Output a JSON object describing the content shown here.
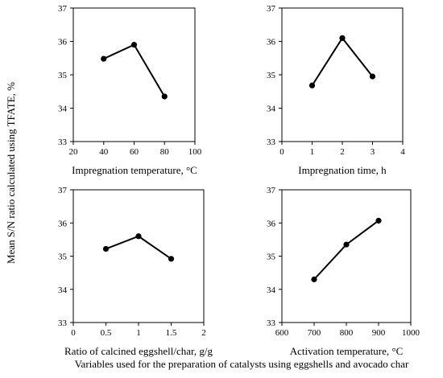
{
  "figure": {
    "shared_ylabel": "Mean S/N ratio calculated using TFATE, %",
    "footer_label": "Variables used for the preparation of catalysts using eggshells and avocado char"
  },
  "chart_data": [
    {
      "type": "line",
      "xlabel": "Impregnation temperature, °C",
      "ylabel": "Mean S/N ratio calculated using TFATE, %",
      "xlim": [
        20,
        100
      ],
      "ylim": [
        33,
        37
      ],
      "xticks": [
        "20",
        "40",
        "60",
        "80",
        "100"
      ],
      "yticks": [
        "33",
        "34",
        "35",
        "36",
        "37"
      ],
      "x": [
        40,
        60,
        80
      ],
      "y": [
        35.48,
        35.9,
        34.35
      ],
      "grid": false
    },
    {
      "type": "line",
      "xlabel": "Impregnation time, h",
      "ylabel": "Mean S/N ratio calculated using TFATE, %",
      "xlim": [
        0,
        4
      ],
      "ylim": [
        33,
        37
      ],
      "xticks": [
        "0",
        "1",
        "2",
        "3",
        "4"
      ],
      "yticks": [
        "33",
        "34",
        "35",
        "36",
        "37"
      ],
      "x": [
        1,
        2,
        3
      ],
      "y": [
        34.68,
        36.1,
        34.95
      ],
      "grid": false
    },
    {
      "type": "line",
      "xlabel": "Ratio of calcined eggshell/char, g/g",
      "ylabel": "Mean S/N ratio calculated using TFATE, %",
      "xlim": [
        0,
        2
      ],
      "ylim": [
        33,
        37
      ],
      "xticks": [
        "0",
        "0.5",
        "1",
        "1.5",
        "2"
      ],
      "yticks": [
        "33",
        "34",
        "35",
        "36",
        "37"
      ],
      "x": [
        0.5,
        1,
        1.5
      ],
      "y": [
        35.22,
        35.6,
        34.92
      ],
      "grid": false
    },
    {
      "type": "line",
      "xlabel": "Activation temperature, °C",
      "ylabel": "Mean S/N ratio calculated using TFATE, %",
      "xlim": [
        600,
        1000
      ],
      "ylim": [
        33,
        37
      ],
      "xticks": [
        "600",
        "700",
        "800",
        "900",
        "1000"
      ],
      "yticks": [
        "33",
        "34",
        "35",
        "36",
        "37"
      ],
      "x": [
        700,
        800,
        900
      ],
      "y": [
        34.3,
        35.35,
        36.07
      ],
      "grid": false
    }
  ]
}
